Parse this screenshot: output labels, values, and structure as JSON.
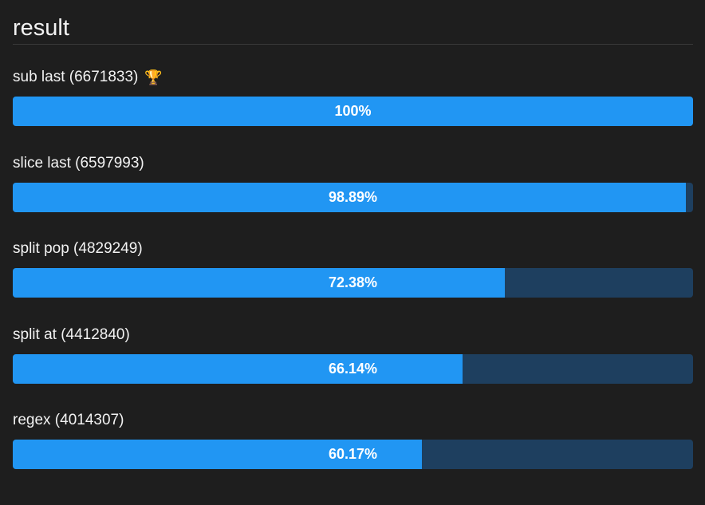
{
  "title": "result",
  "colors": {
    "fill": "#2196f3",
    "track": "#1e3f5f",
    "background": "#1e1e1e"
  },
  "results": [
    {
      "label": "sub last (6671833)",
      "percent_label": "100%",
      "percent": 100,
      "winner": true,
      "icon": "trophy-icon"
    },
    {
      "label": "slice last (6597993)",
      "percent_label": "98.89%",
      "percent": 98.89,
      "winner": false
    },
    {
      "label": "split pop (4829249)",
      "percent_label": "72.38%",
      "percent": 72.38,
      "winner": false
    },
    {
      "label": "split at (4412840)",
      "percent_label": "66.14%",
      "percent": 66.14,
      "winner": false
    },
    {
      "label": "regex (4014307)",
      "percent_label": "60.17%",
      "percent": 60.17,
      "winner": false
    }
  ]
}
